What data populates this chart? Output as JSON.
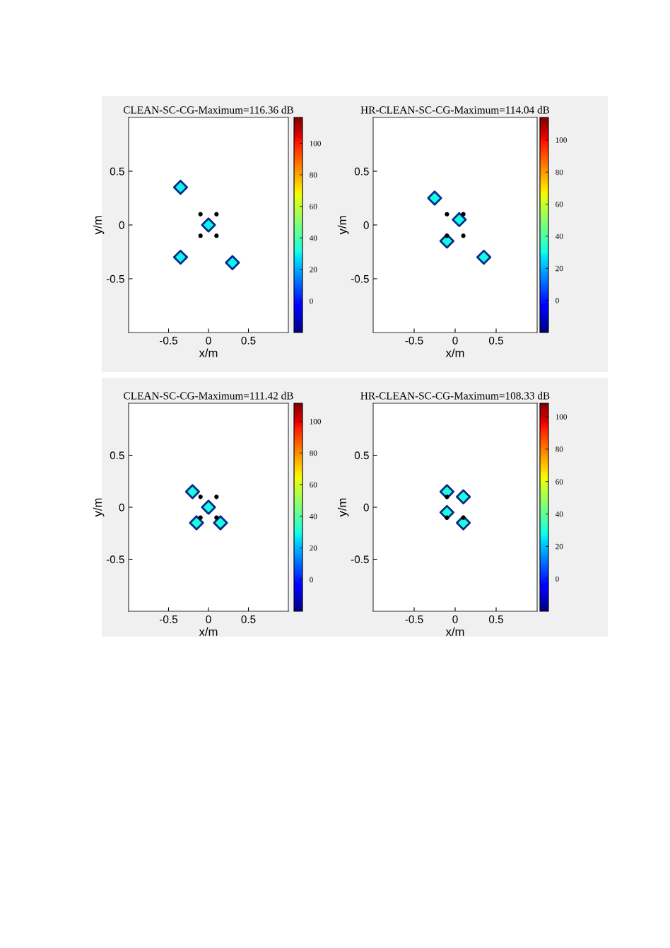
{
  "chart_data": [
    {
      "type": "scatter",
      "title": "CLEAN-SC-CG-Maximum=116.36 dB",
      "xlabel": "x/m",
      "ylabel": "y/m",
      "xlim": [
        -1,
        1
      ],
      "ylim": [
        -1,
        1
      ],
      "xticks": [
        -0.5,
        0,
        0.5
      ],
      "yticks": [
        -0.5,
        0,
        0.5
      ],
      "clim": [
        -20,
        116.36
      ],
      "cticks": [
        0,
        20,
        40,
        60,
        80,
        100
      ],
      "series": [
        {
          "marker": "diamond",
          "x": [
            -0.35,
            0,
            -0.35,
            0.3
          ],
          "values": [
            0.35,
            0,
            -0.3,
            -0.35
          ],
          "cvalues": [
            30,
            30,
            30,
            30
          ]
        },
        {
          "marker": "circle",
          "color": "#000000",
          "x": [
            -0.1,
            0.1,
            -0.1,
            0.1
          ],
          "values": [
            0.1,
            0.1,
            -0.1,
            -0.1
          ]
        }
      ]
    },
    {
      "type": "scatter",
      "title": "HR-CLEAN-SC-CG-Maximum=114.04 dB",
      "xlabel": "x/m",
      "ylabel": "y/m",
      "xlim": [
        -1,
        1
      ],
      "ylim": [
        -1,
        1
      ],
      "xticks": [
        -0.5,
        0,
        0.5
      ],
      "yticks": [
        -0.5,
        0,
        0.5
      ],
      "clim": [
        -20,
        114.04
      ],
      "cticks": [
        0,
        20,
        40,
        60,
        80,
        100
      ],
      "series": [
        {
          "marker": "diamond",
          "x": [
            -0.25,
            0.05,
            -0.1,
            0.35
          ],
          "values": [
            0.25,
            0.05,
            -0.15,
            -0.3
          ],
          "cvalues": [
            30,
            30,
            30,
            30
          ]
        },
        {
          "marker": "circle",
          "color": "#000000",
          "x": [
            -0.1,
            0.1,
            -0.1,
            0.1
          ],
          "values": [
            0.1,
            0.1,
            -0.1,
            -0.1
          ]
        }
      ]
    },
    {
      "type": "scatter",
      "title": "CLEAN-SC-CG-Maximum=111.42 dB",
      "xlabel": "x/m",
      "ylabel": "y/m",
      "xlim": [
        -1,
        1
      ],
      "ylim": [
        -1,
        1
      ],
      "xticks": [
        -0.5,
        0,
        0.5
      ],
      "yticks": [
        -0.5,
        0,
        0.5
      ],
      "clim": [
        -20,
        111.42
      ],
      "cticks": [
        0,
        20,
        40,
        60,
        80,
        100
      ],
      "series": [
        {
          "marker": "diamond",
          "x": [
            -0.2,
            0,
            -0.15,
            0.15
          ],
          "values": [
            0.15,
            0,
            -0.15,
            -0.15
          ],
          "cvalues": [
            30,
            30,
            30,
            30
          ]
        },
        {
          "marker": "circle",
          "color": "#000000",
          "x": [
            -0.1,
            0.1,
            -0.1,
            0.1
          ],
          "values": [
            0.1,
            0.1,
            -0.1,
            -0.1
          ]
        }
      ]
    },
    {
      "type": "scatter",
      "title": "HR-CLEAN-SC-CG-Maximum=108.33 dB",
      "xlabel": "x/m",
      "ylabel": "y/m",
      "xlim": [
        -1,
        1
      ],
      "ylim": [
        -1,
        1
      ],
      "xticks": [
        -0.5,
        0,
        0.5
      ],
      "yticks": [
        -0.5,
        0,
        0.5
      ],
      "clim": [
        -20,
        108.33
      ],
      "cticks": [
        0,
        20,
        40,
        60,
        80,
        100
      ],
      "series": [
        {
          "marker": "diamond",
          "x": [
            -0.1,
            0.1,
            -0.1,
            0.1
          ],
          "values": [
            0.15,
            0.1,
            -0.05,
            -0.15
          ],
          "cvalues": [
            30,
            30,
            30,
            30
          ]
        },
        {
          "marker": "circle",
          "color": "#000000",
          "x": [
            -0.1,
            -0.1,
            0.1
          ],
          "values": [
            0.1,
            -0.1,
            -0.1
          ]
        }
      ]
    }
  ]
}
